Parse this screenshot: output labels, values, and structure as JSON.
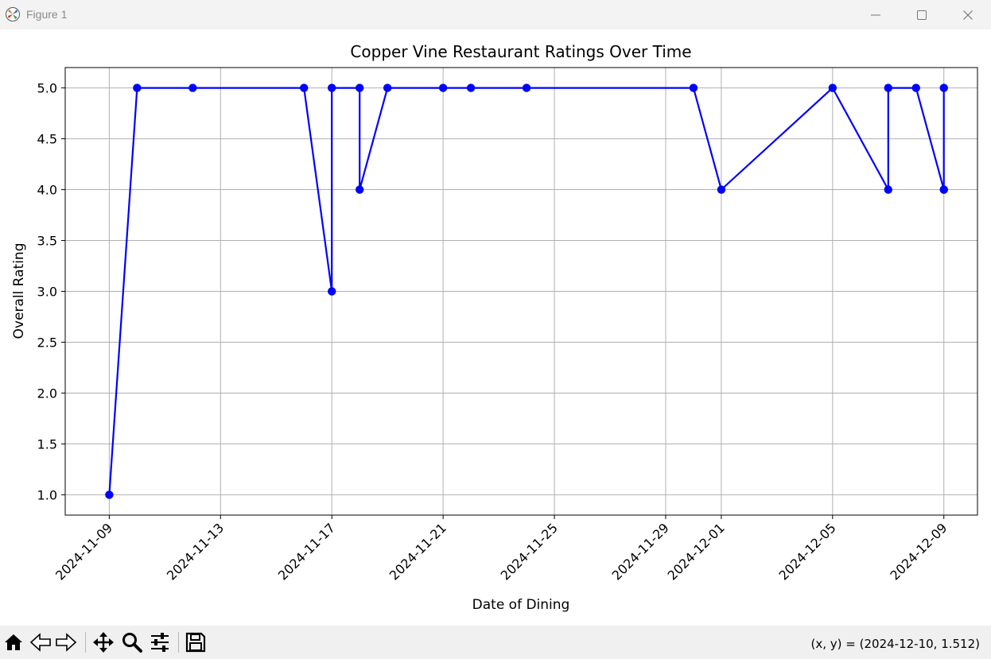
{
  "window": {
    "title": "Figure 1"
  },
  "toolbar": {
    "coords_text": "(x, y) = (2024-12-10, 1.512)"
  },
  "chart_data": {
    "type": "line",
    "title": "Copper Vine Restaurant Ratings Over Time",
    "xlabel": "Date of Dining",
    "ylabel": "Overall Rating",
    "series": [
      {
        "x": [
          "2024-11-09",
          "2024-11-10",
          "2024-11-12",
          "2024-11-16",
          "2024-11-17",
          "2024-11-17",
          "2024-11-18",
          "2024-11-18",
          "2024-11-19",
          "2024-11-21",
          "2024-11-22",
          "2024-11-24",
          "2024-11-30",
          "2024-12-01",
          "2024-12-05",
          "2024-12-07",
          "2024-12-07",
          "2024-12-08",
          "2024-12-09",
          "2024-12-09",
          "2024-12-09"
        ],
        "y": [
          1.0,
          5.0,
          5.0,
          5.0,
          3.0,
          5.0,
          5.0,
          4.0,
          5.0,
          5.0,
          5.0,
          5.0,
          5.0,
          4.0,
          5.0,
          4.0,
          5.0,
          5.0,
          4.0,
          5.0,
          4.0
        ]
      }
    ],
    "color": "#0000ff",
    "xticks": [
      "2024-11-09",
      "2024-11-13",
      "2024-11-17",
      "2024-11-21",
      "2024-11-25",
      "2024-11-29",
      "2024-12-01",
      "2024-12-05",
      "2024-12-09"
    ],
    "yticks": [
      "1.0",
      "1.5",
      "2.0",
      "2.5",
      "3.0",
      "3.5",
      "4.0",
      "4.5",
      "5.0"
    ],
    "xlim": [
      "2024-11-07T10:00",
      "2024-12-10T05:00"
    ],
    "ylim": [
      0.8,
      5.2
    ],
    "grid": true
  }
}
